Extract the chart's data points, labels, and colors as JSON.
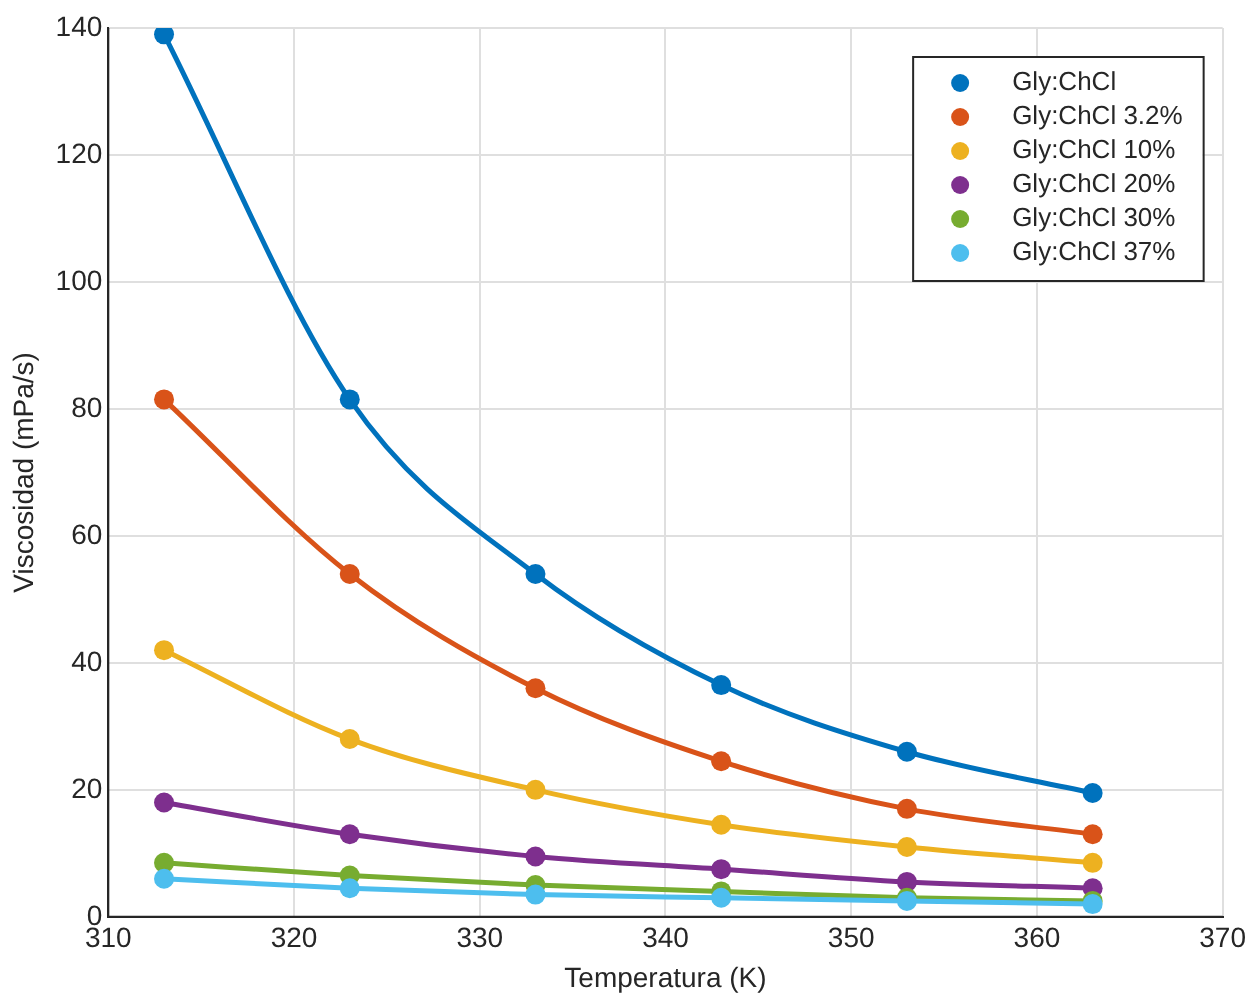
{
  "chart_data": {
    "type": "line",
    "xlabel": "Temperatura (K)",
    "ylabel": "Viscosidad (mPa/s)",
    "x": [
      313,
      323,
      333,
      343,
      353,
      363
    ],
    "series": [
      {
        "name": "Gly:ChCl",
        "color": "#0072bd",
        "values": [
          139,
          81.5,
          54,
          36.5,
          26,
          19.5
        ]
      },
      {
        "name": "Gly:ChCl 3.2%",
        "color": "#d95319",
        "values": [
          81.5,
          54,
          36,
          24.5,
          17,
          13
        ]
      },
      {
        "name": "Gly:ChCl 10%",
        "color": "#edb120",
        "values": [
          42,
          28,
          20,
          14.5,
          11,
          8.5
        ]
      },
      {
        "name": "Gly:ChCl 20%",
        "color": "#7e2f8e",
        "values": [
          18,
          13,
          9.5,
          7.5,
          5.5,
          4.5
        ]
      },
      {
        "name": "Gly:ChCl 30%",
        "color": "#77ac30",
        "values": [
          8.5,
          6.5,
          5,
          4,
          3,
          2.5
        ]
      },
      {
        "name": "Gly:ChCl 37%",
        "color": "#4dbeee",
        "values": [
          6,
          4.5,
          3.5,
          3,
          2.5,
          2
        ]
      }
    ],
    "xlim": [
      310,
      370
    ],
    "xticks": [
      310,
      320,
      330,
      340,
      350,
      360,
      370
    ],
    "ylim": [
      0,
      140
    ],
    "yticks": [
      0,
      20,
      40,
      60,
      80,
      100,
      120,
      140
    ],
    "grid": true,
    "legend": "top right",
    "marker": "circle",
    "line_style": "solid"
  }
}
